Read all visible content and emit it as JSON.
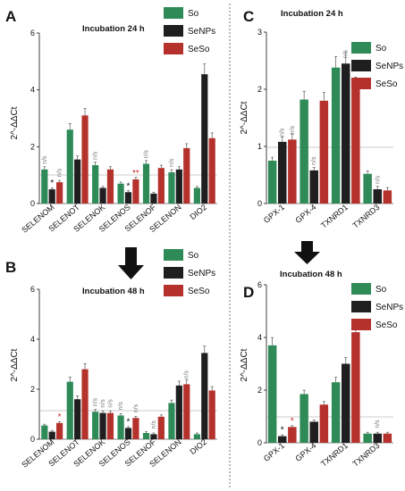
{
  "colors": {
    "So": "#2e8b57",
    "SeNPs": "#1f1f1f",
    "SeSo": "#b5312b"
  },
  "chart_data": [
    {
      "id": "A",
      "type": "bar",
      "letter": "A",
      "title": "Incubation 24 h",
      "ylabel": "2^-ΔΔCt",
      "ylim": [
        0,
        6
      ],
      "yticks": [
        "0",
        "2",
        "4",
        "6"
      ],
      "categories": [
        "SELENOM",
        "SELENOT",
        "SELENOK",
        "SELENOS",
        "SELENOF",
        "SELENON",
        "DIO2"
      ],
      "series": [
        {
          "name": "So",
          "values": [
            1.2,
            2.6,
            1.35,
            0.7,
            1.4,
            1.1,
            0.55
          ]
        },
        {
          "name": "SeNPs",
          "values": [
            0.5,
            1.55,
            0.55,
            0.4,
            0.35,
            1.2,
            4.55
          ]
        },
        {
          "name": "SeSo",
          "values": [
            0.75,
            3.1,
            1.2,
            0.85,
            1.25,
            1.95,
            2.3
          ]
        }
      ],
      "annotations": [
        {
          "cat": 0,
          "s": 0,
          "text": "n/s"
        },
        {
          "cat": 0,
          "s": 1,
          "text": "*"
        },
        {
          "cat": 0,
          "s": 2,
          "text": "n/s"
        },
        {
          "cat": 2,
          "s": 0,
          "text": "n/s"
        },
        {
          "cat": 3,
          "s": 1,
          "text": "*"
        },
        {
          "cat": 3,
          "s": 2,
          "text": "**"
        },
        {
          "cat": 4,
          "s": 0,
          "text": "n/s"
        },
        {
          "cat": 5,
          "s": 0,
          "text": "n/s"
        }
      ]
    },
    {
      "id": "B",
      "type": "bar",
      "letter": "B",
      "title": "Incubation 48 h",
      "ylabel": "2^-ΔΔCt",
      "ylim": [
        0,
        6
      ],
      "yticks": [
        "0",
        "2",
        "4",
        "6"
      ],
      "categories": [
        "SELENOM",
        "SELENOT",
        "SELENOK",
        "SELENOS",
        "SELENOF",
        "SELENON",
        "DIO2"
      ],
      "series": [
        {
          "name": "So",
          "values": [
            0.55,
            2.3,
            1.1,
            0.95,
            0.25,
            1.45,
            0.2
          ]
        },
        {
          "name": "SeNPs",
          "values": [
            0.3,
            1.6,
            1.05,
            0.45,
            0.2,
            2.15,
            3.45
          ]
        },
        {
          "name": "SeSo",
          "values": [
            0.65,
            2.8,
            1.05,
            0.85,
            0.9,
            2.2,
            1.95
          ]
        }
      ],
      "annotations": [
        {
          "cat": 0,
          "s": 2,
          "text": "*"
        },
        {
          "cat": 2,
          "s": 0,
          "text": "n/s"
        },
        {
          "cat": 2,
          "s": 1,
          "text": "n/s"
        },
        {
          "cat": 2,
          "s": 2,
          "text": "n/s"
        },
        {
          "cat": 3,
          "s": 0,
          "text": "n/s"
        },
        {
          "cat": 3,
          "s": 1,
          "text": "*"
        },
        {
          "cat": 3,
          "s": 2,
          "text": "n/s"
        },
        {
          "cat": 4,
          "s": 1,
          "text": "n/s"
        },
        {
          "cat": 5,
          "s": 2,
          "text": "n/s"
        }
      ]
    },
    {
      "id": "C",
      "type": "bar",
      "letter": "C",
      "title": "Incubation 24 h",
      "ylabel": "2^-ΔΔCt",
      "ylim": [
        0,
        3
      ],
      "yticks": [
        "0",
        "1",
        "2",
        "3"
      ],
      "categories": [
        "GPX-1",
        "GPX-4",
        "TXNRD1",
        "TXNRD3"
      ],
      "series": [
        {
          "name": "So",
          "values": [
            0.75,
            1.82,
            2.38,
            0.52
          ]
        },
        {
          "name": "SeNPs",
          "values": [
            1.08,
            0.58,
            2.45,
            0.25
          ]
        },
        {
          "name": "SeSo",
          "values": [
            1.12,
            1.8,
            2.05,
            0.23
          ]
        }
      ],
      "annotations": [
        {
          "cat": 0,
          "s": 1,
          "text": "n/s"
        },
        {
          "cat": 0,
          "s": 2,
          "text": "n/s"
        },
        {
          "cat": 1,
          "s": 1,
          "text": "n/s"
        },
        {
          "cat": 2,
          "s": 1,
          "text": "n/s"
        },
        {
          "cat": 3,
          "s": 1,
          "text": "n/s"
        }
      ]
    },
    {
      "id": "D",
      "type": "bar",
      "letter": "D",
      "title": "Incubation 48 h",
      "ylabel": "2^-ΔΔCt",
      "ylim": [
        0,
        6
      ],
      "yticks": [
        "0",
        "2",
        "4",
        "6"
      ],
      "categories": [
        "GPX-1",
        "GPX-4",
        "TXNRD1",
        "TXNRD3"
      ],
      "series": [
        {
          "name": "So",
          "values": [
            3.7,
            1.85,
            2.3,
            0.35
          ]
        },
        {
          "name": "SeNPs",
          "values": [
            0.25,
            0.8,
            3.0,
            0.35
          ]
        },
        {
          "name": "SeSo",
          "values": [
            0.6,
            1.45,
            4.2,
            0.35
          ]
        }
      ],
      "annotations": [
        {
          "cat": 0,
          "s": 1,
          "text": "*"
        },
        {
          "cat": 0,
          "s": 2,
          "text": "*"
        },
        {
          "cat": 3,
          "s": 1,
          "text": "n/s"
        }
      ]
    }
  ]
}
